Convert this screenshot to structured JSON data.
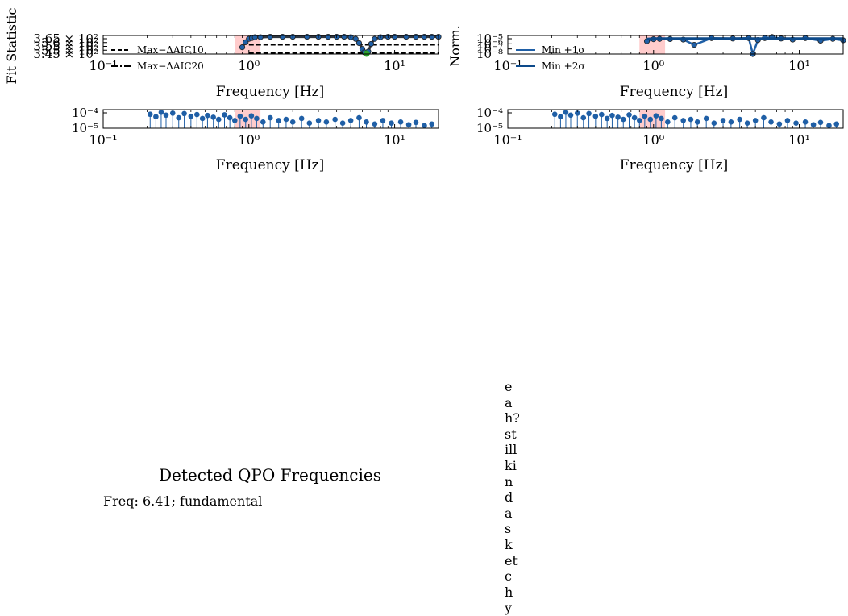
{
  "colors": {
    "band": "#ffcccc",
    "series_blue": "#1f5fa6",
    "series_dark": "#2f3640",
    "marker_edge": "#222222",
    "marker_green": "#2ca02c",
    "dashed": "#000000"
  },
  "panels": {
    "top_left": {
      "ylabel": "Fit Statistic",
      "xlabel": "Frequency [Hz]",
      "ytick_labels": [
        "3.65 × 10²",
        "3.6 × 10²",
        "3.55 × 10²",
        "3.5 × 10²",
        "3.45 × 10²"
      ],
      "xtick_labels": [
        "10⁻¹",
        "10⁰",
        "10¹"
      ],
      "legend": [
        "Max−ΔAIC10",
        "Max−ΔAIC20"
      ]
    },
    "top_right": {
      "ylabel": "Norm.",
      "xlabel": "Frequency [Hz]",
      "ytick_labels": [
        "10⁻⁵",
        "10⁻⁶",
        "10⁻⁷",
        "10⁻⁸"
      ],
      "xtick_labels": [
        "10⁻¹",
        "10⁰",
        "10¹"
      ],
      "legend": [
        "Min +1σ",
        "Min +2σ"
      ]
    },
    "bottom_left": {
      "xlabel": "Frequency [Hz]",
      "ytick_labels": [
        "10⁻⁴",
        "10⁻⁵"
      ],
      "xtick_labels": [
        "10⁻¹",
        "10⁰",
        "10¹"
      ]
    },
    "bottom_right": {
      "xlabel": "Frequency [Hz]",
      "ytick_labels": [
        "10⁻⁴",
        "10⁻⁵"
      ],
      "xtick_labels": [
        "10⁻¹",
        "10⁰",
        "10¹"
      ]
    }
  },
  "detected": {
    "title": "Detected QPO Frequencies",
    "entries": [
      "Freq: 6.41; fundamental"
    ]
  },
  "side_note": "eah? still kinda sketchy",
  "chart_data": [
    {
      "type": "scatter",
      "panel": "top_left",
      "xlabel": "Frequency [Hz]",
      "ylabel": "Fit Statistic",
      "x_scale": "log",
      "xlim": [
        0.1,
        20
      ],
      "ylim": [
        344,
        366
      ],
      "shaded_band": [
        0.8,
        1.2
      ],
      "hlines": [
        {
          "name": "Max−ΔAIC10",
          "y": 355,
          "xmin": 1.0,
          "xmax": 20
        },
        {
          "name": "Max−ΔAIC20",
          "y": 345,
          "xmin": 1.0,
          "xmax": 20
        }
      ],
      "series": [
        {
          "x": [
            0.9,
            0.95,
            1.0,
            1.05,
            1.1,
            1.2,
            1.4,
            1.7,
            2.0,
            2.5,
            3.0,
            3.5,
            4.0,
            4.5,
            5.0,
            5.4,
            5.7,
            6.0,
            6.2,
            6.41,
            6.6,
            6.9,
            7.3,
            8.0,
            9.0,
            10.0,
            12.0,
            14.0,
            16.0,
            18.0,
            20.0
          ],
          "y": [
            352,
            358,
            362,
            363,
            364,
            364,
            364.5,
            364.5,
            364.5,
            364.5,
            364.5,
            364.5,
            364.5,
            364.5,
            364,
            362,
            357,
            350,
            346,
            344.5,
            347,
            356,
            362,
            364,
            364.5,
            364.5,
            364.5,
            364.5,
            364.5,
            364.5,
            364.5
          ]
        }
      ],
      "highlight_points": [
        {
          "x": 6.41,
          "y": 344.5
        }
      ]
    },
    {
      "type": "line",
      "panel": "top_right",
      "ylabel": "Norm.",
      "xlabel": "Frequency [Hz]",
      "x_scale": "log",
      "y_scale": "log",
      "xlim": [
        0.1,
        20
      ],
      "ylim": [
        1e-09,
        0.0001
      ],
      "shaded_band": [
        0.8,
        1.2
      ],
      "series": [
        {
          "name": "Min +1σ",
          "x": [
            0.9,
            1.0,
            1.1,
            1.3,
            1.6,
            1.9,
            2.5,
            3.5,
            4.5,
            4.8,
            5.2,
            5.8,
            6.5,
            7.5,
            9.0,
            11,
            14,
            17,
            20
          ],
          "y": [
            3e-06,
            1e-05,
            1.2e-05,
            1.1e-05,
            8e-06,
            3e-07,
            2e-05,
            1.5e-05,
            2e-05,
            1e-09,
            6e-06,
            2e-05,
            4e-05,
            1.5e-05,
            8e-06,
            2e-05,
            4e-06,
            1.2e-05,
            5e-06
          ]
        },
        {
          "name": "Min +2σ",
          "x": [
            0.9,
            1.0,
            2.0,
            5.0,
            10.0,
            20.0
          ],
          "y": [
            1.2e-05,
            1.5e-05,
            1.5e-05,
            1.5e-05,
            1.5e-05,
            1.5e-05
          ]
        }
      ]
    },
    {
      "type": "scatter",
      "panel": "bottom_left",
      "xlabel": "Frequency [Hz]",
      "x_scale": "log",
      "y_scale": "log",
      "xlim": [
        0.1,
        20
      ],
      "ylim": [
        4e-06,
        0.0005
      ],
      "shaded_band": [
        0.8,
        1.2
      ],
      "series": [
        {
          "x": [
            0.21,
            0.23,
            0.25,
            0.27,
            0.3,
            0.33,
            0.36,
            0.4,
            0.44,
            0.48,
            0.52,
            0.57,
            0.62,
            0.68,
            0.74,
            0.8,
            0.87,
            0.95,
            1.04,
            1.13,
            1.25,
            1.4,
            1.6,
            1.8,
            2.0,
            2.3,
            2.6,
            3.0,
            3.4,
            3.9,
            4.4,
            5.0,
            5.7,
            6.4,
            7.3,
            8.3,
            9.5,
            11,
            12.5,
            14,
            16,
            18
          ],
          "y": [
            0.00015,
            8e-05,
            0.00025,
            0.00012,
            0.0002,
            6e-05,
            0.00018,
            9e-05,
            0.00014,
            5e-05,
            0.00011,
            7e-05,
            4e-05,
            0.00013,
            6e-05,
            3e-05,
            9e-05,
            4e-05,
            0.0001,
            5e-05,
            2e-05,
            6e-05,
            3e-05,
            4e-05,
            2e-05,
            5e-05,
            1.5e-05,
            3e-05,
            2e-05,
            4e-05,
            1.5e-05,
            3e-05,
            6e-05,
            2e-05,
            1.2e-05,
            3e-05,
            1.5e-05,
            2e-05,
            1e-05,
            1.8e-05,
            8e-06,
            1.2e-05
          ]
        }
      ]
    },
    {
      "type": "scatter",
      "panel": "bottom_right",
      "xlabel": "Frequency [Hz]",
      "x_scale": "log",
      "y_scale": "log",
      "xlim": [
        0.1,
        20
      ],
      "ylim": [
        4e-06,
        0.0005
      ],
      "shaded_band": [
        0.8,
        1.2
      ],
      "series": [
        {
          "x": [
            0.21,
            0.23,
            0.25,
            0.27,
            0.3,
            0.33,
            0.36,
            0.4,
            0.44,
            0.48,
            0.52,
            0.57,
            0.62,
            0.68,
            0.74,
            0.8,
            0.87,
            0.95,
            1.04,
            1.13,
            1.25,
            1.4,
            1.6,
            1.8,
            2.0,
            2.3,
            2.6,
            3.0,
            3.4,
            3.9,
            4.4,
            5.0,
            5.7,
            6.4,
            7.3,
            8.3,
            9.5,
            11,
            12.5,
            14,
            16,
            18
          ],
          "y": [
            0.00015,
            8e-05,
            0.00025,
            0.00012,
            0.0002,
            6e-05,
            0.00018,
            9e-05,
            0.00014,
            5e-05,
            0.00011,
            7e-05,
            4e-05,
            0.00013,
            6e-05,
            3e-05,
            9e-05,
            4e-05,
            0.0001,
            5e-05,
            2e-05,
            6e-05,
            3e-05,
            4e-05,
            2e-05,
            5e-05,
            1.5e-05,
            3e-05,
            2e-05,
            4e-05,
            1.5e-05,
            3e-05,
            6e-05,
            2e-05,
            1.2e-05,
            3e-05,
            1.5e-05,
            2e-05,
            1e-05,
            1.8e-05,
            8e-06,
            1.2e-05
          ]
        }
      ]
    }
  ]
}
